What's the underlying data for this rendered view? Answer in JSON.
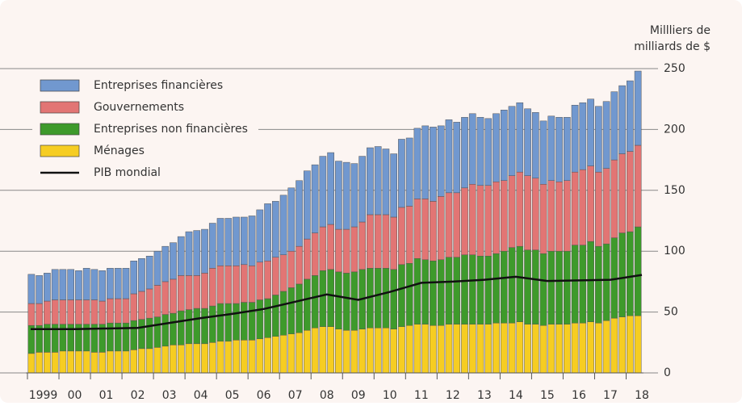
{
  "chart_data": {
    "type": "stacked_bar",
    "y_axis_label": [
      "Millliers de",
      "milliards de $"
    ],
    "categories": [
      null,
      "1999",
      null,
      null,
      null,
      "00",
      null,
      null,
      null,
      "01",
      null,
      null,
      null,
      "02",
      null,
      null,
      null,
      "03",
      null,
      null,
      null,
      "04",
      null,
      null,
      null,
      "05",
      null,
      null,
      null,
      "06",
      null,
      null,
      null,
      "07",
      null,
      null,
      null,
      "08",
      null,
      null,
      null,
      "09",
      null,
      null,
      null,
      "10",
      null,
      null,
      null,
      "11",
      null,
      null,
      null,
      "12",
      null,
      null,
      null,
      "13",
      null,
      null,
      null,
      "14",
      null,
      null,
      null,
      "15",
      null,
      null,
      null,
      "16",
      null,
      null,
      null,
      "17",
      null,
      null,
      null,
      "18"
    ],
    "series": [
      {
        "name": "Entreprises financières",
        "color": "#7198cf",
        "values": [
          24,
          23,
          23,
          25,
          25,
          25,
          24,
          26,
          25,
          25,
          25,
          25,
          25,
          27,
          27,
          27,
          28,
          29,
          30,
          32,
          36,
          37,
          36,
          37,
          39,
          39,
          40,
          39,
          41,
          43,
          47,
          46,
          49,
          52,
          54,
          56,
          56,
          58,
          59,
          56,
          55,
          52,
          54,
          55,
          56,
          54,
          52,
          56,
          56,
          58,
          60,
          61,
          58,
          60,
          58,
          58,
          58,
          56,
          55,
          56,
          58,
          57,
          57,
          55,
          54,
          52,
          53,
          53,
          52,
          55,
          55,
          55,
          54,
          55,
          56,
          56,
          58,
          61
        ]
      },
      {
        "name": "Gouvernements",
        "color": "#e27574",
        "values": [
          18,
          18,
          19,
          20,
          20,
          20,
          20,
          20,
          20,
          19,
          20,
          20,
          20,
          22,
          23,
          24,
          26,
          27,
          28,
          29,
          28,
          27,
          29,
          31,
          31,
          31,
          31,
          31,
          30,
          31,
          31,
          31,
          30,
          30,
          31,
          33,
          35,
          36,
          37,
          35,
          36,
          37,
          39,
          44,
          44,
          44,
          43,
          47,
          47,
          49,
          50,
          49,
          52,
          53,
          53,
          55,
          58,
          58,
          58,
          59,
          58,
          59,
          61,
          61,
          59,
          57,
          58,
          57,
          58,
          60,
          62,
          62,
          61,
          62,
          64,
          65,
          66,
          67
        ]
      },
      {
        "name": "Entreprises non financières",
        "color": "#3e9a2b",
        "values": [
          23,
          22,
          23,
          23,
          22,
          22,
          22,
          22,
          23,
          23,
          23,
          23,
          23,
          24,
          24,
          25,
          25,
          26,
          26,
          28,
          28,
          29,
          29,
          30,
          31,
          31,
          30,
          31,
          31,
          32,
          32,
          34,
          36,
          38,
          40,
          42,
          43,
          46,
          47,
          47,
          47,
          48,
          49,
          49,
          49,
          49,
          49,
          51,
          51,
          54,
          53,
          53,
          54,
          55,
          55,
          57,
          57,
          56,
          56,
          57,
          59,
          62,
          62,
          61,
          61,
          59,
          60,
          60,
          60,
          64,
          64,
          66,
          63,
          63,
          66,
          69,
          69,
          73
        ]
      },
      {
        "name": "Ménages",
        "color": "#f6cd22",
        "values": [
          16,
          17,
          17,
          17,
          18,
          18,
          18,
          18,
          17,
          17,
          18,
          18,
          18,
          19,
          20,
          20,
          21,
          22,
          23,
          23,
          24,
          24,
          24,
          25,
          26,
          26,
          27,
          27,
          27,
          28,
          29,
          30,
          31,
          32,
          33,
          35,
          37,
          38,
          38,
          36,
          35,
          35,
          36,
          37,
          37,
          37,
          36,
          38,
          39,
          40,
          40,
          39,
          39,
          40,
          40,
          40,
          40,
          40,
          40,
          41,
          41,
          41,
          42,
          40,
          40,
          39,
          40,
          40,
          40,
          41,
          41,
          42,
          41,
          43,
          45,
          46,
          47,
          47
        ]
      }
    ],
    "line": {
      "name": "PIB mondial",
      "color": "#111111",
      "values": [
        36,
        36,
        36.5,
        37,
        41,
        45,
        48.5,
        52.5,
        58.5,
        64.5,
        60,
        66.5,
        74,
        75,
        76.5,
        79,
        75.5,
        76,
        76.5,
        80.5
      ]
    },
    "ylim": [
      0,
      250
    ],
    "yticks": [
      0,
      50,
      100,
      150,
      200,
      250
    ],
    "grid": true,
    "legend": "top-left"
  }
}
